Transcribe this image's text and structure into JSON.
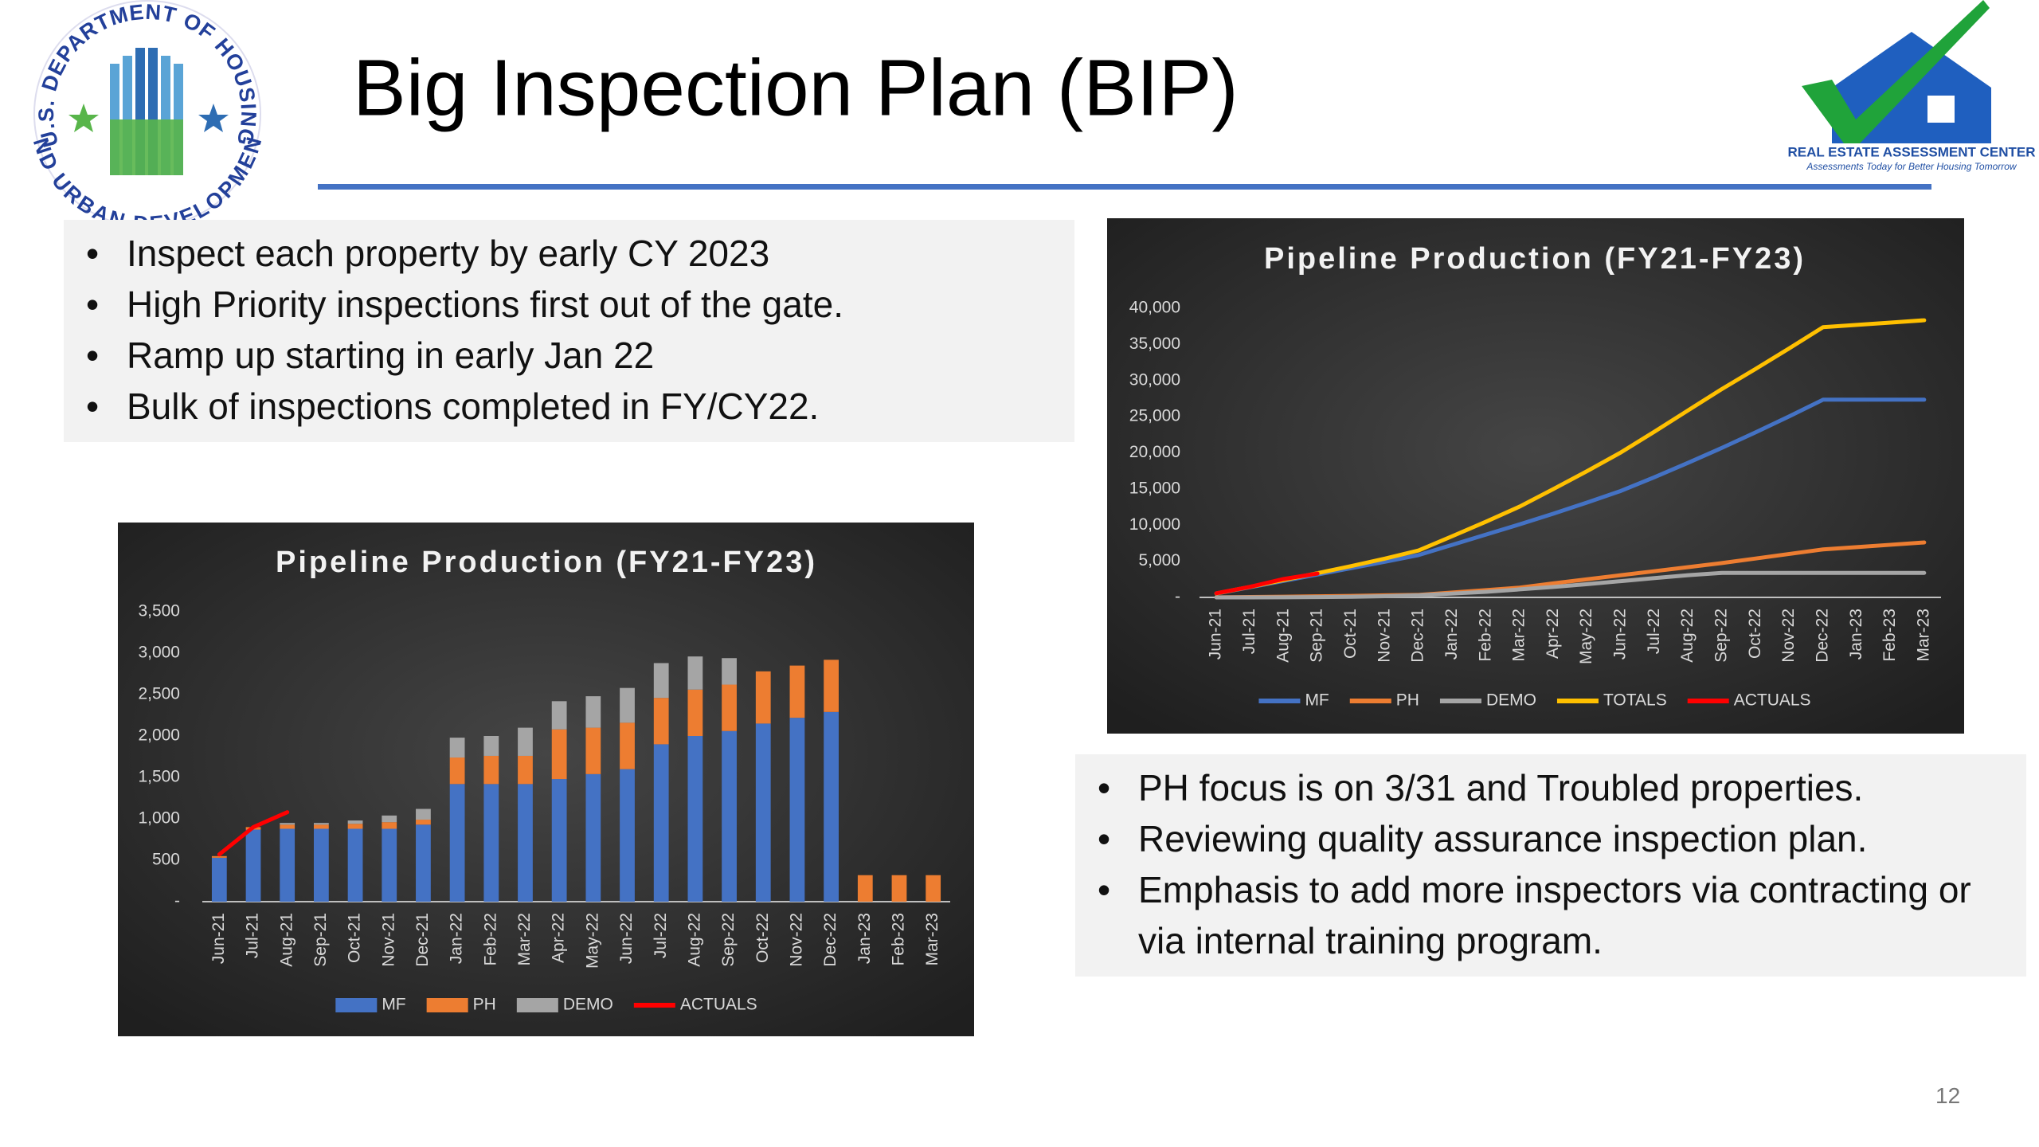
{
  "header": {
    "title": "Big Inspection Plan (BIP)"
  },
  "logos": {
    "hud": [
      "U.S. DEPARTMENT OF HOUSING",
      "AND URBAN DEVELOPMENT"
    ],
    "reac": {
      "name": "REAL ESTATE ASSESSMENT CENTER",
      "tagline": "Assessments Today for Better Housing Tomorrow"
    }
  },
  "bullets_top": [
    "Inspect each property by early CY 2023",
    "High Priority inspections first out of the gate.",
    "Ramp up starting in early Jan 22",
    "Bulk of inspections completed in FY/CY22."
  ],
  "bullets_right": [
    "PH focus is on 3/31 and Troubled properties.",
    "Reviewing quality assurance inspection plan.",
    "Emphasis to add more inspectors via contracting or via internal training program."
  ],
  "page_number": "12",
  "chart_data": [
    {
      "type": "bar",
      "stacked": true,
      "title": "Pipeline Production (FY21-FY23)",
      "categories": [
        "Jun-21",
        "Jul-21",
        "Aug-21",
        "Sep-21",
        "Oct-21",
        "Nov-21",
        "Dec-21",
        "Jan-22",
        "Feb-22",
        "Mar-22",
        "Apr-22",
        "May-22",
        "Jun-22",
        "Jul-22",
        "Aug-22",
        "Sep-22",
        "Oct-22",
        "Nov-22",
        "Dec-22",
        "Jan-23",
        "Feb-23",
        "Mar-23"
      ],
      "series": [
        {
          "name": "MF",
          "color": "#4472c4",
          "values": [
            530,
            870,
            880,
            880,
            880,
            880,
            930,
            1420,
            1420,
            1420,
            1480,
            1540,
            1600,
            1900,
            2000,
            2060,
            2150,
            2220,
            2290,
            0,
            0,
            0
          ]
        },
        {
          "name": "PH",
          "color": "#ed7d31",
          "values": [
            20,
            30,
            50,
            50,
            60,
            80,
            60,
            320,
            340,
            340,
            600,
            560,
            560,
            560,
            560,
            560,
            630,
            630,
            630,
            320,
            320,
            320
          ]
        },
        {
          "name": "DEMO",
          "color": "#a5a5a5",
          "values": [
            0,
            0,
            20,
            20,
            40,
            80,
            130,
            240,
            240,
            340,
            340,
            380,
            420,
            420,
            400,
            320,
            0,
            0,
            0,
            0,
            0,
            0
          ]
        },
        {
          "name": "ACTUALS",
          "color": "#ff0000",
          "type": "line",
          "values": [
            570,
            900,
            1080,
            null,
            null,
            null,
            null,
            null,
            null,
            null,
            null,
            null,
            null,
            null,
            null,
            null,
            null,
            null,
            null,
            null,
            null,
            null
          ]
        }
      ],
      "ylim": [
        0,
        3500
      ],
      "yticks": [
        {
          "value": 0,
          "label": "-"
        },
        500,
        {
          "value": 1000,
          "label": "1,000"
        },
        {
          "value": 1500,
          "label": "1,500"
        },
        {
          "value": 2000,
          "label": "2,000"
        },
        {
          "value": 2500,
          "label": "2,500"
        },
        {
          "value": 3000,
          "label": "3,000"
        },
        {
          "value": 3500,
          "label": "3,500"
        }
      ],
      "grid": false,
      "legend": "bottom"
    },
    {
      "type": "line",
      "title": "Pipeline Production (FY21-FY23)",
      "categories": [
        "Jun-21",
        "Jul-21",
        "Aug-21",
        "Sep-21",
        "Oct-21",
        "Nov-21",
        "Dec-21",
        "Jan-22",
        "Feb-22",
        "Mar-22",
        "Apr-22",
        "May-22",
        "Jun-22",
        "Jul-22",
        "Aug-22",
        "Sep-22",
        "Oct-22",
        "Nov-22",
        "Dec-22",
        "Jan-23",
        "Feb-23",
        "Mar-23"
      ],
      "series": [
        {
          "name": "MF",
          "color": "#4472c4",
          "values": [
            530,
            1400,
            2280,
            3160,
            4040,
            4920,
            5850,
            7270,
            8690,
            10110,
            11590,
            13130,
            14730,
            16630,
            18630,
            20690,
            22840,
            25060,
            27350,
            27350,
            27350,
            27350
          ]
        },
        {
          "name": "PH",
          "color": "#ed7d31",
          "values": [
            20,
            50,
            100,
            150,
            210,
            290,
            350,
            670,
            1010,
            1350,
            1950,
            2510,
            3070,
            3630,
            4190,
            4750,
            5380,
            6010,
            6640,
            6960,
            7280,
            7600
          ]
        },
        {
          "name": "DEMO",
          "color": "#a5a5a5",
          "values": [
            0,
            0,
            20,
            40,
            80,
            160,
            290,
            530,
            770,
            1110,
            1450,
            1830,
            2250,
            2670,
            3070,
            3390,
            3390,
            3390,
            3390,
            3390,
            3390,
            3390
          ]
        },
        {
          "name": "TOTALS",
          "color": "#ffc000",
          "values": [
            550,
            1450,
            2400,
            3350,
            4330,
            5370,
            6490,
            8470,
            10470,
            12570,
            14990,
            17470,
            20050,
            22930,
            25890,
            28830,
            31610,
            34460,
            37380,
            37700,
            38020,
            38340
          ]
        },
        {
          "name": "ACTUALS",
          "color": "#ff0000",
          "values": [
            570,
            1470,
            2550,
            3300,
            null,
            null,
            null,
            null,
            null,
            null,
            null,
            null,
            null,
            null,
            null,
            null,
            null,
            null,
            null,
            null,
            null,
            null
          ]
        }
      ],
      "ylim": [
        0,
        40000
      ],
      "yticks": [
        {
          "value": 0,
          "label": "-"
        },
        {
          "value": 5000,
          "label": "5,000"
        },
        {
          "value": 10000,
          "label": "10,000"
        },
        {
          "value": 15000,
          "label": "15,000"
        },
        {
          "value": 20000,
          "label": "20,000"
        },
        {
          "value": 25000,
          "label": "25,000"
        },
        {
          "value": 30000,
          "label": "30,000"
        },
        {
          "value": 35000,
          "label": "35,000"
        },
        {
          "value": 40000,
          "label": "40,000"
        }
      ],
      "grid": false,
      "legend": "bottom"
    }
  ]
}
